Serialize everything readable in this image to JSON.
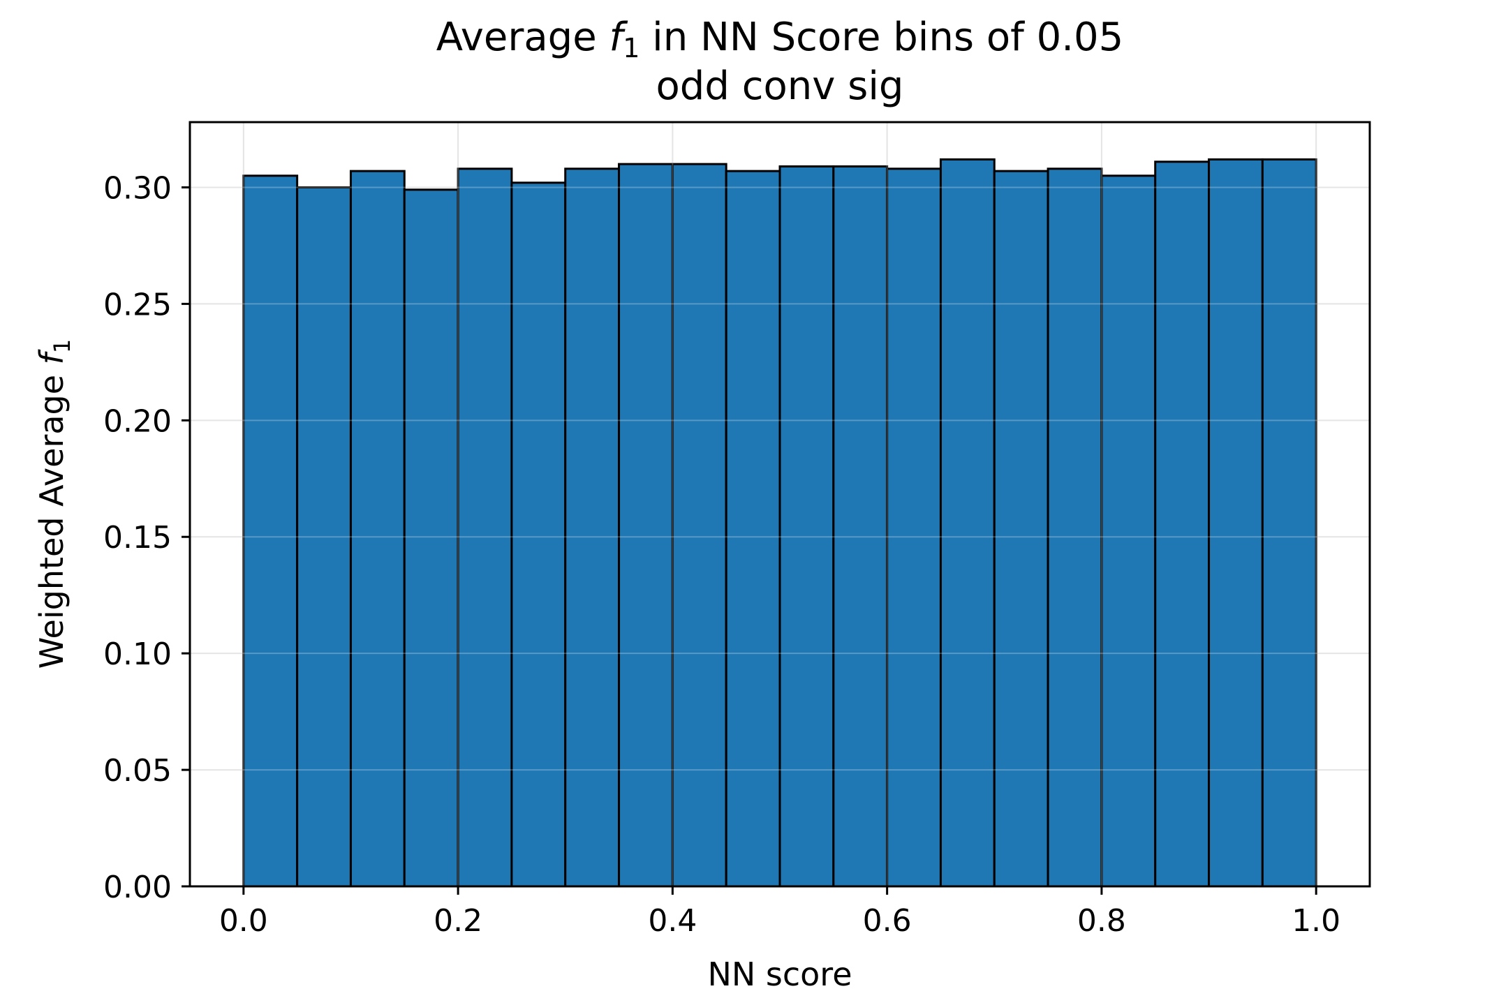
{
  "chart_data": {
    "type": "bar",
    "title": "Average f₁ in NN Score bins of 0.05",
    "title_parts": {
      "prefix": "Average ",
      "symbol": "f",
      "subscript": "1",
      "suffix": " in NN Score bins of 0.05"
    },
    "subtitle": "odd conv sig",
    "xlabel": "NN score",
    "ylabel": "Weighted Average f₁",
    "ylabel_parts": {
      "prefix": "Weighted Average ",
      "symbol": "f",
      "subscript": "1"
    },
    "bin_width": 0.05,
    "bin_edges": [
      0.0,
      0.05,
      0.1,
      0.15,
      0.2,
      0.25,
      0.3,
      0.35,
      0.4,
      0.45,
      0.5,
      0.55,
      0.6,
      0.65,
      0.7,
      0.75,
      0.8,
      0.85,
      0.9,
      0.95,
      1.0
    ],
    "values": [
      0.305,
      0.3,
      0.307,
      0.299,
      0.308,
      0.302,
      0.308,
      0.31,
      0.31,
      0.307,
      0.309,
      0.309,
      0.308,
      0.312,
      0.307,
      0.308,
      0.305,
      0.311,
      0.312,
      0.312
    ],
    "xlim": [
      -0.05,
      1.05
    ],
    "ylim": [
      0,
      0.328
    ],
    "xticks": [
      0.0,
      0.2,
      0.4,
      0.6,
      0.8,
      1.0
    ],
    "xtick_labels": [
      "0.0",
      "0.2",
      "0.4",
      "0.6",
      "0.8",
      "1.0"
    ],
    "yticks": [
      0.0,
      0.05,
      0.1,
      0.15,
      0.2,
      0.25,
      0.3
    ],
    "ytick_labels": [
      "0.00",
      "0.05",
      "0.10",
      "0.15",
      "0.20",
      "0.25",
      "0.30"
    ],
    "grid": true,
    "bar_color": "#1f77b4",
    "edge_color": "#000000",
    "grid_color": "#dddddd"
  }
}
